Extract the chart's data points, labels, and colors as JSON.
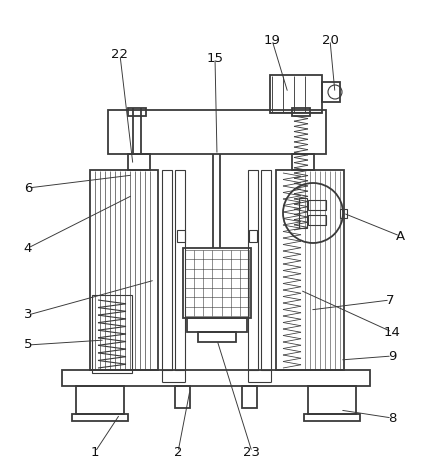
{
  "bg_color": "#ffffff",
  "line_color": "#3a3a3a",
  "lw": 1.3,
  "tlw": 0.8,
  "fig_w": 4.33,
  "fig_h": 4.71,
  "dpi": 100
}
